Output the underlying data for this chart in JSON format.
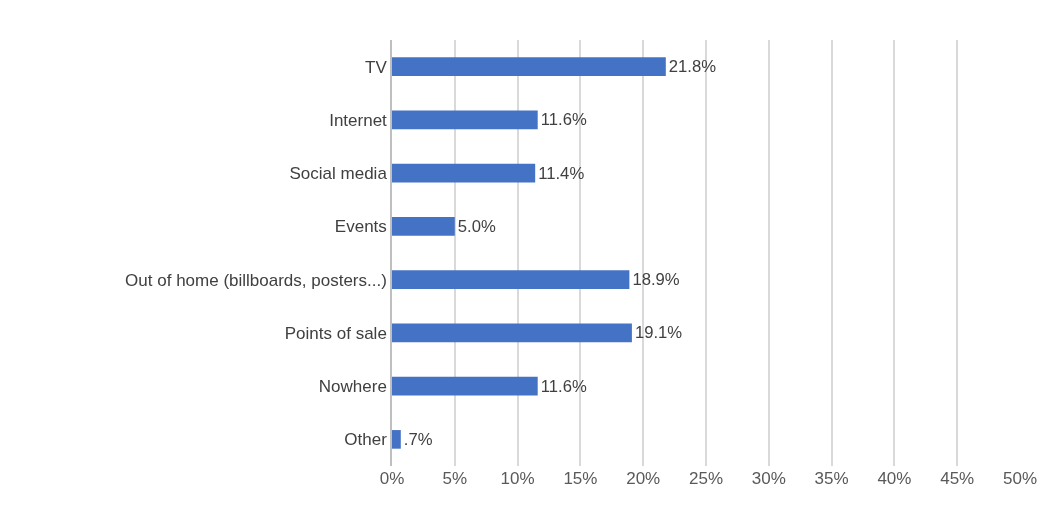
{
  "chart_data": {
    "type": "bar",
    "orientation": "horizontal",
    "categories": [
      "TV",
      "Internet",
      "Social media",
      "Events",
      "Out of home (billboards, posters...)",
      "Points of sale",
      "Nowhere",
      "Other"
    ],
    "values": [
      21.8,
      11.6,
      11.4,
      5.0,
      18.9,
      19.1,
      11.6,
      0.7
    ],
    "value_labels": [
      "21.8%",
      "11.6%",
      "11.4%",
      "5.0%",
      "18.9%",
      "19.1%",
      "11.6%",
      ".7%"
    ],
    "color": "#4472c4",
    "xlim": [
      0,
      50
    ],
    "xticks": [
      {
        "value": 0,
        "label": "0%"
      },
      {
        "value": 5,
        "label": "5%"
      },
      {
        "value": 10,
        "label": "10%"
      },
      {
        "value": 15,
        "label": "15%"
      },
      {
        "value": 20,
        "label": "20%"
      },
      {
        "value": 25,
        "label": "25%"
      },
      {
        "value": 30,
        "label": "30%"
      },
      {
        "value": 35,
        "label": "35%"
      },
      {
        "value": 40,
        "label": "40%"
      },
      {
        "value": 45,
        "label": "45%"
      },
      {
        "value": 50,
        "label": "50%"
      }
    ],
    "grid": "x"
  }
}
